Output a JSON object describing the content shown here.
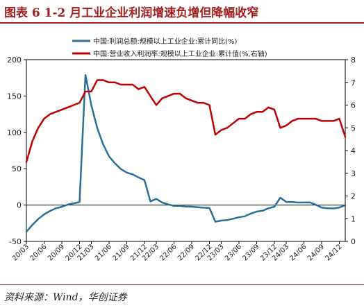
{
  "header": {
    "title": "图表 6   1-2 月工业企业利润增速负增但降幅收窄"
  },
  "footer": {
    "source": "资料来源：Wind，华创证券"
  },
  "colors": {
    "profit": "#2a6f97",
    "revenue_margin": "#c00000",
    "title": "#a31f1f"
  },
  "chart_data": {
    "type": "line",
    "title": "",
    "grid": false,
    "legend_position": "top",
    "x": [
      "20/03",
      "20/04",
      "20/05",
      "20/06",
      "20/07",
      "20/08",
      "20/09",
      "20/10",
      "20/11",
      "20/12",
      "21/02",
      "21/03",
      "21/04",
      "21/05",
      "21/06",
      "21/07",
      "21/08",
      "21/09",
      "21/10",
      "21/11",
      "21/12",
      "22/02",
      "22/03",
      "22/04",
      "22/05",
      "22/06",
      "22/07",
      "22/08",
      "22/09",
      "22/10",
      "22/11",
      "22/12",
      "23/02",
      "23/03",
      "23/04",
      "23/05",
      "23/06",
      "23/07",
      "23/08",
      "23/09",
      "23/10",
      "23/11",
      "23/12",
      "24/02",
      "24/03",
      "24/04",
      "24/05",
      "24/06",
      "24/07",
      "24/08",
      "24/09",
      "24/10",
      "24/11",
      "24/12",
      "25/02"
    ],
    "x_tick_labels": [
      "20/03",
      "20/06",
      "20/09",
      "20/12",
      "21/03",
      "21/06",
      "21/09",
      "21/12",
      "22/03",
      "22/06",
      "22/09",
      "22/12",
      "23/03",
      "23/06",
      "23/09",
      "23/12",
      "24/03",
      "24/06",
      "24/09",
      "24/12"
    ],
    "y_left": {
      "ticks": [
        "-50",
        "0",
        "50",
        "100",
        "150",
        "200"
      ],
      "range": [
        -50,
        200
      ]
    },
    "y_right": {
      "ticks": [
        "0",
        "1",
        "2",
        "3",
        "4",
        "5",
        "6",
        "7",
        "8"
      ],
      "range": [
        0,
        8
      ]
    },
    "series": [
      {
        "name": "中国:利润总额:规模以上工业企业:累计同比(%)",
        "axis": "left",
        "values": [
          -36.7,
          -27.4,
          -19.3,
          -12.8,
          -8.1,
          -4.4,
          -2.4,
          0.7,
          2.4,
          4.1,
          178.9,
          137.3,
          106.0,
          83.4,
          66.9,
          57.3,
          49.5,
          44.7,
          42.2,
          38.0,
          34.3,
          5.0,
          8.5,
          3.5,
          1.0,
          -1.1,
          -1.1,
          -2.1,
          -2.3,
          -3.0,
          -3.6,
          -4.0,
          -22.9,
          -21.4,
          -20.6,
          -18.8,
          -16.8,
          -15.5,
          -11.7,
          -9.0,
          -7.8,
          -4.4,
          -2.3,
          10.2,
          4.3,
          4.3,
          3.4,
          3.5,
          3.6,
          0.5,
          -3.5,
          -4.3,
          -4.7,
          -3.3,
          -0.3
        ]
      },
      {
        "name": "中国:营业收入利润率:规模以上工业企业:累计值(%,右轴)",
        "axis": "right",
        "values": [
          3.5,
          4.4,
          5.0,
          5.4,
          5.6,
          5.7,
          5.8,
          5.9,
          6.0,
          6.1,
          6.6,
          6.6,
          7.1,
          7.1,
          7.0,
          7.0,
          6.9,
          6.9,
          6.9,
          6.7,
          6.8,
          6.4,
          6.0,
          6.3,
          6.4,
          6.5,
          6.5,
          6.3,
          6.2,
          6.1,
          6.1,
          6.0,
          4.7,
          4.9,
          5.0,
          5.2,
          5.4,
          5.4,
          5.6,
          5.7,
          5.7,
          5.9,
          5.8,
          5.0,
          5.1,
          5.3,
          5.4,
          5.4,
          5.4,
          5.4,
          5.3,
          5.3,
          5.3,
          5.4,
          4.6
        ]
      }
    ]
  }
}
